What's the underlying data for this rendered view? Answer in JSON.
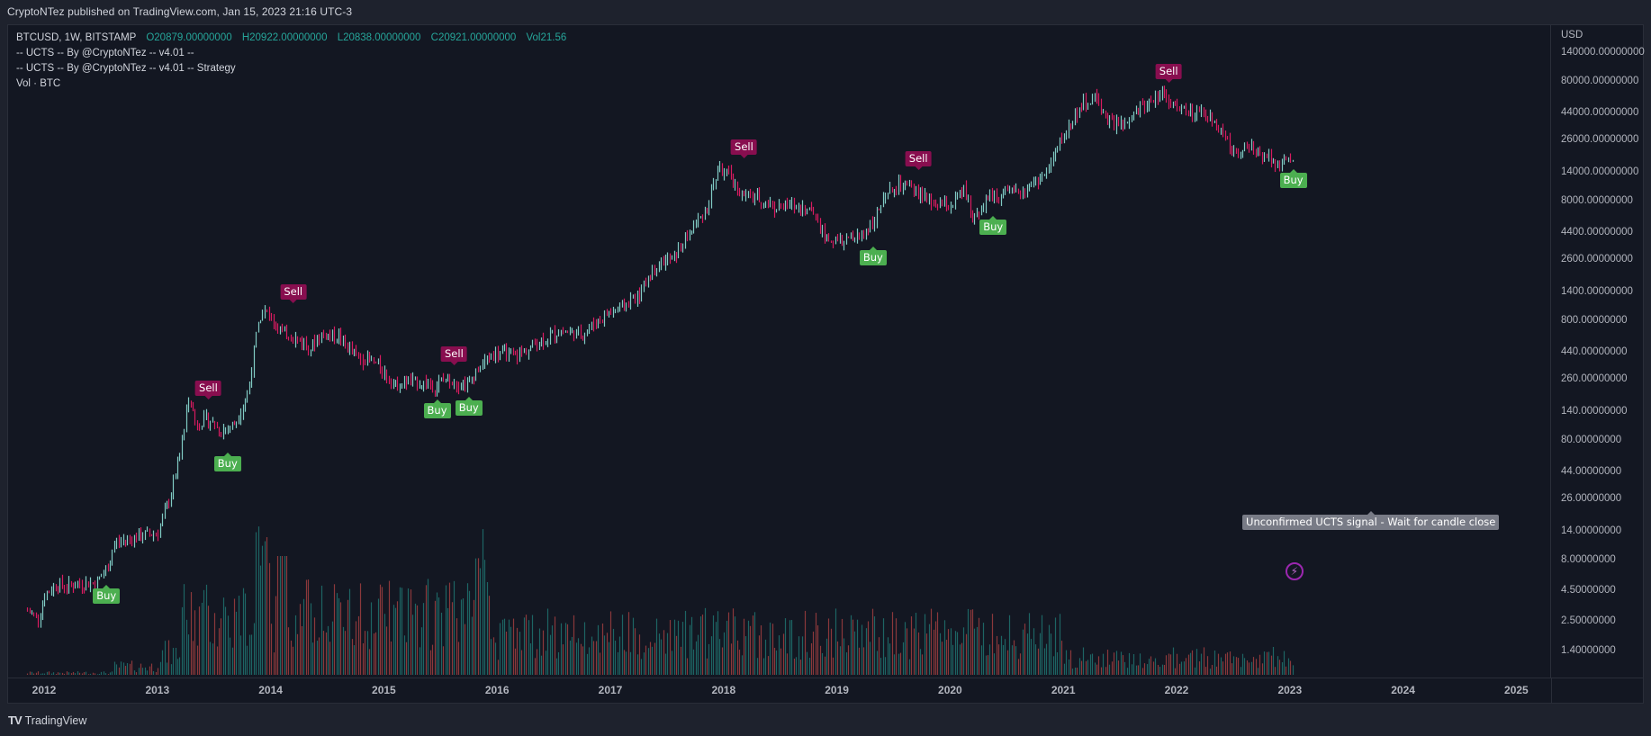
{
  "header": {
    "published_text": "CryptoNTez published on TradingView.com, Jan 15, 2023 21:16 UTC-3"
  },
  "legend": {
    "symbol": "BTCUSD, 1W, BITSTAMP",
    "open": "O20879.00000000",
    "high": "H20922.00000000",
    "low": "L20838.00000000",
    "close": "C20921.00000000",
    "volume": "Vol21.56",
    "indicators": [
      "-- UCTS -- By @CryptoNTez -- v4.01 --",
      "-- UCTS -- By @CryptoNTez -- v4.01 -- Strategy",
      "Vol · BTC"
    ]
  },
  "price_axis": {
    "unit": "USD",
    "labels": [
      {
        "text": "140000.00000000",
        "value": 140000
      },
      {
        "text": "80000.00000000",
        "value": 80000
      },
      {
        "text": "44000.00000000",
        "value": 44000
      },
      {
        "text": "26000.00000000",
        "value": 26000
      },
      {
        "text": "14000.00000000",
        "value": 14000
      },
      {
        "text": "8000.00000000",
        "value": 8000
      },
      {
        "text": "4400.00000000",
        "value": 4400
      },
      {
        "text": "2600.00000000",
        "value": 2600
      },
      {
        "text": "1400.00000000",
        "value": 1400
      },
      {
        "text": "800.00000000",
        "value": 800
      },
      {
        "text": "440.00000000",
        "value": 440
      },
      {
        "text": "260.00000000",
        "value": 260
      },
      {
        "text": "140.00000000",
        "value": 140
      },
      {
        "text": "80.00000000",
        "value": 80
      },
      {
        "text": "44.00000000",
        "value": 44
      },
      {
        "text": "26.00000000",
        "value": 26
      },
      {
        "text": "14.00000000",
        "value": 14
      },
      {
        "text": "8.00000000",
        "value": 8
      },
      {
        "text": "4.50000000",
        "value": 4.5
      },
      {
        "text": "2.50000000",
        "value": 2.5
      },
      {
        "text": "1.40000000",
        "value": 1.4
      }
    ]
  },
  "time_axis": {
    "labels": [
      "2012",
      "2013",
      "2014",
      "2015",
      "2016",
      "2017",
      "2018",
      "2019",
      "2020",
      "2021",
      "2022",
      "2023",
      "2024",
      "2025"
    ]
  },
  "signals": [
    {
      "type": "buy",
      "label": "Buy",
      "date": 2012.55,
      "price": 5.5
    },
    {
      "type": "sell",
      "label": "Sell",
      "date": 2013.45,
      "price": 150
    },
    {
      "type": "buy",
      "label": "Buy",
      "date": 2013.62,
      "price": 70
    },
    {
      "type": "sell",
      "label": "Sell",
      "date": 2014.2,
      "price": 950
    },
    {
      "type": "buy",
      "label": "Buy",
      "date": 2015.47,
      "price": 195
    },
    {
      "type": "sell",
      "label": "Sell",
      "date": 2015.62,
      "price": 290
    },
    {
      "type": "buy",
      "label": "Buy",
      "date": 2015.75,
      "price": 205
    },
    {
      "type": "sell",
      "label": "Sell",
      "date": 2018.18,
      "price": 15500
    },
    {
      "type": "buy",
      "label": "Buy",
      "date": 2019.32,
      "price": 3700
    },
    {
      "type": "sell",
      "label": "Sell",
      "date": 2019.72,
      "price": 12500
    },
    {
      "type": "buy",
      "label": "Buy",
      "date": 2020.38,
      "price": 6700
    },
    {
      "type": "sell",
      "label": "Sell",
      "date": 2021.93,
      "price": 67000
    },
    {
      "type": "buy",
      "label": "Buy",
      "date": 2023.03,
      "price": 16500
    }
  ],
  "tooltip": {
    "text": "Unconfirmed UCTS signal - Wait for candle close"
  },
  "footer": {
    "logo": "TV",
    "brand": "TradingView"
  },
  "colors": {
    "up": "#26a69a",
    "down": "#ef5350",
    "up_candle": "#80cbc4",
    "down_candle": "#d81b60",
    "buy": "#4caf50",
    "sell": "#880e4f",
    "background": "#131722"
  },
  "chart_data": {
    "type": "candlestick",
    "title": "BTCUSD, 1W, BITSTAMP",
    "xlabel": "",
    "ylabel": "USD",
    "yscale": "log",
    "ylim": [
      1.4,
      140000
    ],
    "x_ticks": [
      "2012",
      "2013",
      "2014",
      "2015",
      "2016",
      "2017",
      "2018",
      "2019",
      "2020",
      "2021",
      "2022",
      "2023",
      "2024",
      "2025"
    ],
    "y_ticks": [
      140000,
      80000,
      44000,
      26000,
      14000,
      8000,
      4400,
      2600,
      1400,
      800,
      440,
      260,
      140,
      80,
      44,
      26,
      14,
      8,
      4.5,
      2.5,
      1.4
    ],
    "last_bar": {
      "open": 20879,
      "high": 20922,
      "low": 20838,
      "close": 20921,
      "volume": 21.56
    },
    "price_path": [
      [
        2011.85,
        3.0
      ],
      [
        2011.95,
        2.6
      ],
      [
        2012.0,
        4.0
      ],
      [
        2012.1,
        5.0
      ],
      [
        2012.2,
        4.8
      ],
      [
        2012.3,
        5.0
      ],
      [
        2012.45,
        5.2
      ],
      [
        2012.55,
        6.5
      ],
      [
        2012.62,
        11
      ],
      [
        2012.75,
        12
      ],
      [
        2012.9,
        13
      ],
      [
        2013.0,
        13.5
      ],
      [
        2013.1,
        25
      ],
      [
        2013.2,
        60
      ],
      [
        2013.28,
        200
      ],
      [
        2013.33,
        110
      ],
      [
        2013.45,
        120
      ],
      [
        2013.55,
        95
      ],
      [
        2013.68,
        110
      ],
      [
        2013.8,
        200
      ],
      [
        2013.88,
        700
      ],
      [
        2013.92,
        1000
      ],
      [
        2014.0,
        850
      ],
      [
        2014.1,
        650
      ],
      [
        2014.2,
        580
      ],
      [
        2014.35,
        480
      ],
      [
        2014.45,
        620
      ],
      [
        2014.6,
        590
      ],
      [
        2014.75,
        400
      ],
      [
        2014.9,
        360
      ],
      [
        2015.0,
        300
      ],
      [
        2015.1,
        230
      ],
      [
        2015.2,
        250
      ],
      [
        2015.35,
        240
      ],
      [
        2015.45,
        225
      ],
      [
        2015.55,
        270
      ],
      [
        2015.65,
        240
      ],
      [
        2015.75,
        245
      ],
      [
        2015.85,
        360
      ],
      [
        2016.0,
        430
      ],
      [
        2016.2,
        420
      ],
      [
        2016.4,
        560
      ],
      [
        2016.55,
        650
      ],
      [
        2016.75,
        620
      ],
      [
        2016.95,
        900
      ],
      [
        2017.1,
        1050
      ],
      [
        2017.25,
        1300
      ],
      [
        2017.4,
        2400
      ],
      [
        2017.55,
        2600
      ],
      [
        2017.7,
        4300
      ],
      [
        2017.85,
        7000
      ],
      [
        2017.95,
        15000
      ],
      [
        2018.05,
        13000
      ],
      [
        2018.15,
        9000
      ],
      [
        2018.3,
        8500
      ],
      [
        2018.45,
        7000
      ],
      [
        2018.6,
        7300
      ],
      [
        2018.8,
        6400
      ],
      [
        2018.9,
        3800
      ],
      [
        2019.05,
        3600
      ],
      [
        2019.2,
        4000
      ],
      [
        2019.3,
        5200
      ],
      [
        2019.45,
        9000
      ],
      [
        2019.55,
        11000
      ],
      [
        2019.7,
        9500
      ],
      [
        2019.85,
        7500
      ],
      [
        2020.0,
        7200
      ],
      [
        2020.12,
        9800
      ],
      [
        2020.2,
        5800
      ],
      [
        2020.35,
        8800
      ],
      [
        2020.55,
        9200
      ],
      [
        2020.7,
        10800
      ],
      [
        2020.85,
        13500
      ],
      [
        2020.95,
        23000
      ],
      [
        2021.05,
        34000
      ],
      [
        2021.15,
        50000
      ],
      [
        2021.28,
        58000
      ],
      [
        2021.4,
        37000
      ],
      [
        2021.55,
        33000
      ],
      [
        2021.65,
        45000
      ],
      [
        2021.8,
        58000
      ],
      [
        2021.88,
        65000
      ],
      [
        2022.0,
        47000
      ],
      [
        2022.15,
        42000
      ],
      [
        2022.3,
        40000
      ],
      [
        2022.4,
        30000
      ],
      [
        2022.5,
        20000
      ],
      [
        2022.6,
        23000
      ],
      [
        2022.7,
        20000
      ],
      [
        2022.8,
        19500
      ],
      [
        2022.9,
        16500
      ],
      [
        2023.0,
        16800
      ],
      [
        2023.04,
        20900
      ]
    ],
    "volume_note": "Volume histogram colored by candle direction; peaks around late 2013, early 2014, mid-2015, and late 2015."
  }
}
